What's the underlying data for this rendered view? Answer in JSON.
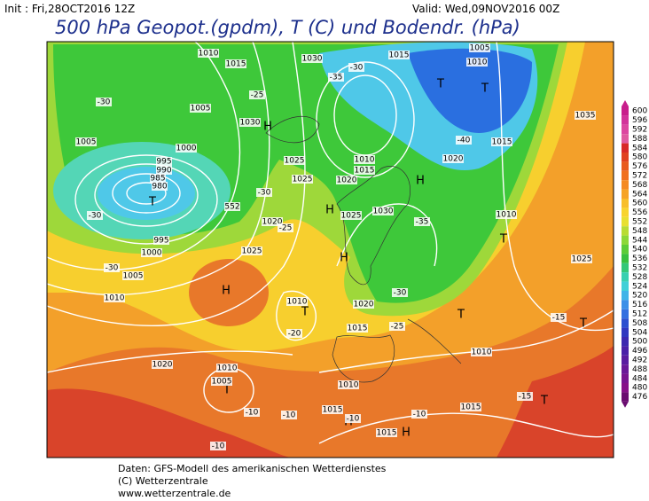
{
  "header": {
    "init": "Init : Fri,28OCT2016 12Z",
    "valid": "Valid: Wed,09NOV2016 00Z",
    "title": "500 hPa Geopot.(gpdm), T (C) und Bodendr. (hPa)"
  },
  "colorbar": {
    "labels": [
      600,
      596,
      592,
      588,
      584,
      580,
      576,
      572,
      568,
      564,
      560,
      556,
      552,
      548,
      544,
      540,
      536,
      532,
      528,
      524,
      520,
      516,
      512,
      508,
      504,
      500,
      496,
      492,
      488,
      484,
      480,
      476
    ]
  },
  "map": {
    "labels": [
      "H",
      "T",
      "H",
      "H",
      "T",
      "T",
      "H",
      "T",
      "T",
      "H",
      "H",
      "T",
      "T",
      "T",
      "T",
      "H",
      "1010",
      "1015",
      "1030",
      "1015",
      "1005",
      "1010",
      "1005",
      "1030",
      "1005",
      "1000",
      "995",
      "990",
      "985",
      "980",
      "1025",
      "1010",
      "1015",
      "1020",
      "1025",
      "1025",
      "1030",
      "1020",
      "1025",
      "995",
      "1000",
      "1005",
      "1010",
      "1015",
      "1020",
      "1010",
      "1025",
      "1035",
      "1010",
      "1020",
      "1015",
      "1010",
      "1020",
      "1010",
      "1005",
      "1010",
      "1015",
      "1015",
      "1015",
      "-20",
      "-15",
      "-15",
      "-10",
      "-10",
      "-10",
      "-10",
      "-10",
      "-40",
      "-35",
      "-30",
      "-25",
      "-30",
      "-25",
      "-30",
      "-30",
      "-30",
      "-35",
      "-30",
      "-25",
      "552"
    ]
  },
  "footer": {
    "line1": "Daten: GFS-Modell des amerikanischen Wetterdienstes",
    "line2": "(C) Wetterzentrale",
    "line3": "www.wetterzentrale.de"
  }
}
